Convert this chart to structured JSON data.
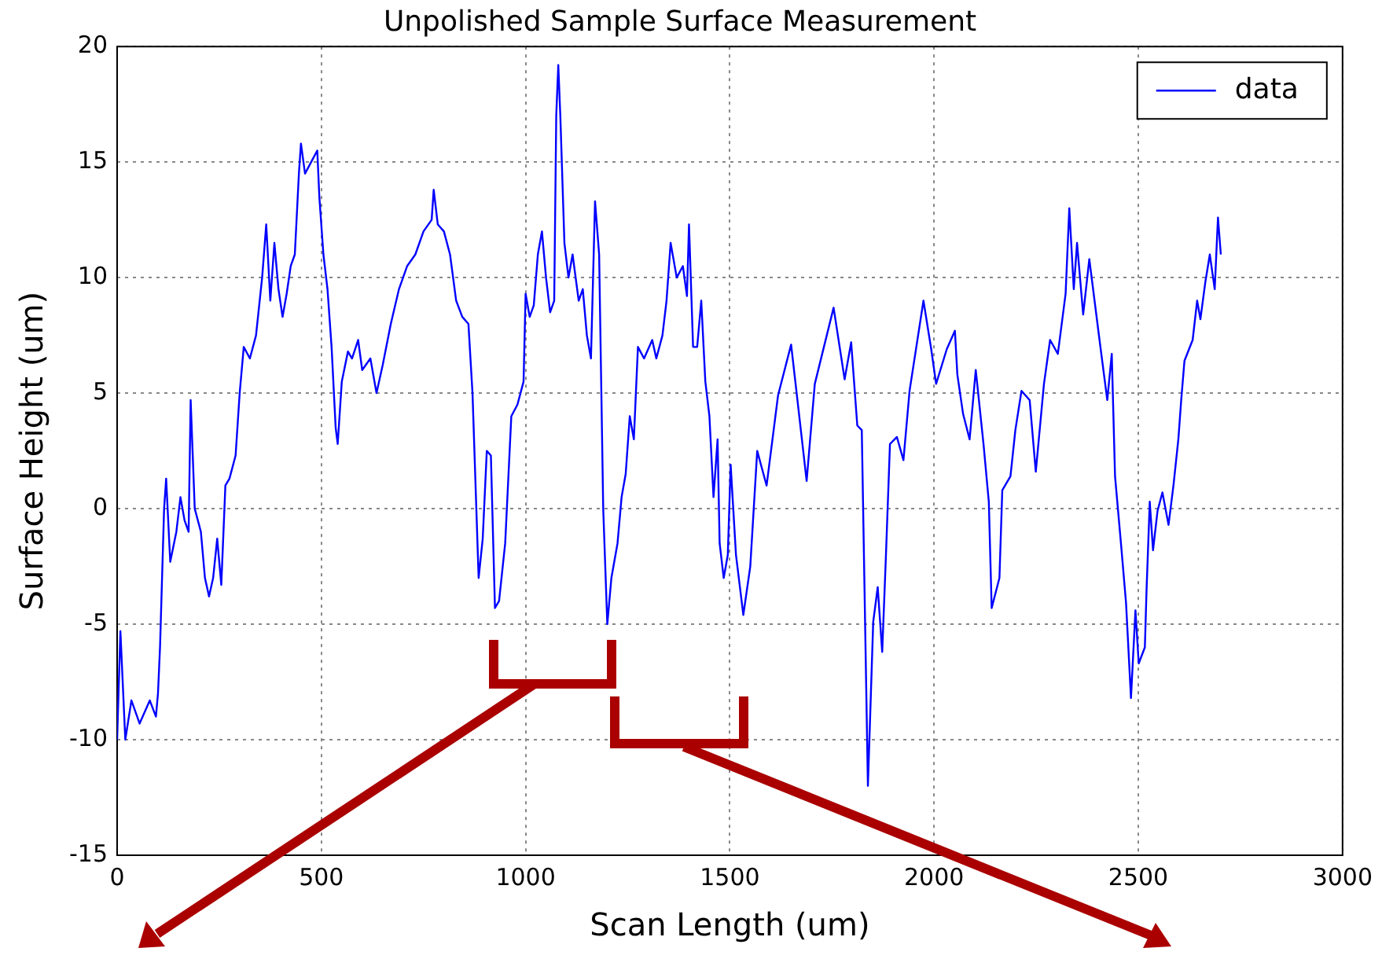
{
  "chart_data": {
    "type": "line",
    "title": "Unpolished Sample Surface Measurement",
    "xlabel": "Scan Length (um)",
    "ylabel": "Surface Height (um)",
    "xlim": [
      0,
      3000
    ],
    "xticks": [
      0,
      500,
      1000,
      1500,
      2000,
      2500,
      3000
    ],
    "ylim": [
      -15,
      20
    ],
    "yticks": [
      -15,
      -10,
      -5,
      0,
      5,
      10,
      15,
      20
    ],
    "grid": true,
    "legend": "top right",
    "marker": "none",
    "line_style": "solid",
    "series": [
      {
        "name": "data",
        "color": "#0000ff",
        "x": [
          0,
          8,
          20,
          35,
          55,
          80,
          95,
          100,
          105,
          115,
          120,
          130,
          145,
          155,
          165,
          175,
          180,
          190,
          205,
          215,
          225,
          235,
          245,
          255,
          265,
          275,
          290,
          300,
          310,
          325,
          340,
          355,
          365,
          375,
          385,
          395,
          405,
          415,
          425,
          435,
          445,
          450,
          460,
          475,
          490,
          495,
          505,
          515,
          525,
          535,
          540,
          550,
          565,
          575,
          590,
          600,
          620,
          635,
          650,
          670,
          690,
          710,
          730,
          750,
          770,
          775,
          785,
          800,
          815,
          830,
          845,
          860,
          870,
          885,
          895,
          905,
          915,
          925,
          935,
          950,
          965,
          980,
          995,
          1000,
          1010,
          1020,
          1030,
          1040,
          1050,
          1060,
          1070,
          1075,
          1080,
          1085,
          1095,
          1105,
          1115,
          1130,
          1140,
          1150,
          1160,
          1170,
          1180,
          1190,
          1200,
          1210,
          1225,
          1235,
          1245,
          1255,
          1265,
          1275,
          1290,
          1310,
          1320,
          1335,
          1345,
          1355,
          1370,
          1385,
          1395,
          1400,
          1410,
          1420,
          1430,
          1440,
          1450,
          1460,
          1470,
          1475,
          1485,
          1495,
          1502,
          1515,
          1533,
          1550,
          1567,
          1590,
          1618,
          1650,
          1688,
          1708,
          1754,
          1781,
          1797,
          1812,
          1823,
          1838,
          1851,
          1862,
          1873,
          1882,
          1892,
          1909,
          1925,
          1940,
          1974,
          1993,
          2005,
          2031,
          2051,
          2057,
          2071,
          2087,
          2102,
          2121,
          2134,
          2141,
          2160,
          2167,
          2187,
          2199,
          2214,
          2234,
          2249,
          2269,
          2284,
          2303,
          2322,
          2331,
          2342,
          2350,
          2365,
          2380,
          2405,
          2424,
          2435,
          2443,
          2458,
          2470,
          2482,
          2493,
          2501,
          2516,
          2520,
          2528,
          2536,
          2547,
          2559,
          2574,
          2586,
          2598,
          2605,
          2613,
          2633,
          2644,
          2652,
          2664,
          2675,
          2687,
          2695,
          2702
        ],
        "values": [
          -10,
          -5.3,
          -10,
          -8.3,
          -9.3,
          -8.3,
          -9,
          -8,
          -6,
          0,
          1.3,
          -2.3,
          -1,
          0.5,
          -0.5,
          -1,
          4.7,
          0,
          -1,
          -3,
          -3.8,
          -3,
          -1.3,
          -3.3,
          1,
          1.3,
          2.3,
          5,
          7,
          6.5,
          7.5,
          10,
          12.3,
          9,
          11.5,
          9.5,
          8.3,
          9.3,
          10.5,
          11,
          14.5,
          15.8,
          14.5,
          15,
          15.5,
          13.5,
          11,
          9.5,
          7,
          3.5,
          2.8,
          5.5,
          6.8,
          6.5,
          7.3,
          6,
          6.5,
          5,
          6.2,
          8,
          9.5,
          10.5,
          11,
          12,
          12.5,
          13.8,
          12.3,
          12,
          11,
          9,
          8.3,
          8,
          5,
          -3,
          -1.3,
          2.5,
          2.3,
          -4.3,
          -4,
          -1.5,
          4,
          4.5,
          5.5,
          9.3,
          8.3,
          8.8,
          11,
          12,
          10,
          8.5,
          9,
          17,
          19.2,
          17,
          11.5,
          10,
          11,
          9,
          9.5,
          7.5,
          6.5,
          13.3,
          11,
          0,
          -5,
          -3,
          -1.5,
          0.5,
          1.5,
          4,
          3,
          7,
          6.5,
          7.3,
          6.5,
          7.5,
          9,
          11.5,
          10,
          10.5,
          9.2,
          12.3,
          7,
          7,
          9,
          5.5,
          4,
          0.5,
          3,
          -1.5,
          -3,
          -2,
          1.9,
          -2,
          -4.6,
          -2.5,
          2.5,
          1,
          4.9,
          7.1,
          1.2,
          5.4,
          8.7,
          5.6,
          7.2,
          3.6,
          3.4,
          -12,
          -4.9,
          -3.4,
          -6.2,
          -2.1,
          2.8,
          3.1,
          2.1,
          5.1,
          9,
          6.9,
          5.4,
          6.9,
          7.7,
          5.8,
          4.1,
          3,
          6,
          2.8,
          0.3,
          -4.3,
          -3,
          0.8,
          1.4,
          3.4,
          5.1,
          4.7,
          1.6,
          5.4,
          7.3,
          6.7,
          9.3,
          13,
          9.5,
          11.5,
          8.4,
          10.8,
          7.3,
          4.7,
          6.7,
          1.4,
          -1.6,
          -4.1,
          -8.2,
          -4.4,
          -6.7,
          -6,
          -3.6,
          0.3,
          -1.8,
          -0.1,
          0.7,
          -0.7,
          1,
          3,
          4.7,
          6.4,
          7.3,
          9,
          8.2,
          9.8,
          11,
          9.5,
          12.6,
          11
        ]
      }
    ]
  }
}
